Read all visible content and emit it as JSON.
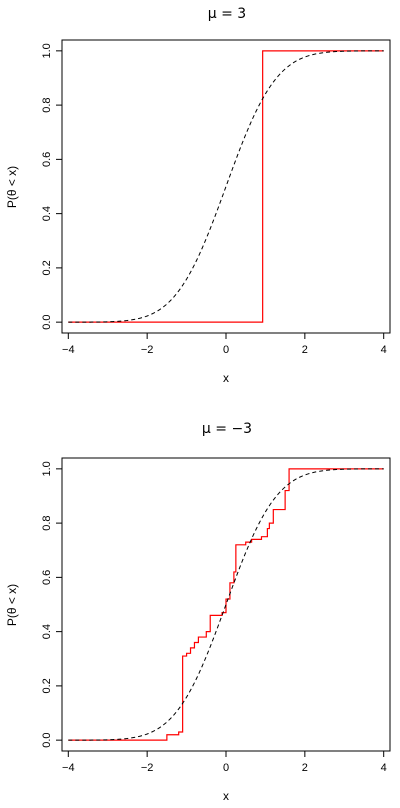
{
  "chart_data": [
    {
      "type": "line",
      "title": "μ = 3",
      "xlabel": "x",
      "ylabel": "P(θ < x)",
      "xlim": [
        -4.16,
        4.16
      ],
      "ylim": [
        -0.04,
        1.04
      ],
      "xticks": [
        -4,
        -2,
        0,
        2,
        4
      ],
      "yticks": [
        0.0,
        0.2,
        0.4,
        0.6,
        0.8,
        1.0
      ],
      "xtick_labels": [
        "−4",
        "−2",
        "0",
        "2",
        "4"
      ],
      "ytick_labels": [
        "0.0",
        "0.2",
        "0.4",
        "0.6",
        "0.8",
        "1.0"
      ],
      "grid": false,
      "series": [
        {
          "style": "step",
          "color": "#ff0000",
          "dash": "solid",
          "x": [
            -4,
            0.93,
            0.93,
            4
          ],
          "y": [
            0,
            0,
            1,
            1
          ]
        },
        {
          "style": "normal-cdf",
          "color": "#000000",
          "dash": "dashed",
          "mean": 0,
          "sd": 1,
          "x_range": [
            -4,
            4
          ]
        }
      ]
    },
    {
      "type": "line",
      "title": "μ = −3",
      "xlabel": "x",
      "ylabel": "P(θ < x)",
      "xlim": [
        -4.16,
        4.16
      ],
      "ylim": [
        -0.04,
        1.04
      ],
      "xticks": [
        -4,
        -2,
        0,
        2,
        4
      ],
      "yticks": [
        0.0,
        0.2,
        0.4,
        0.6,
        0.8,
        1.0
      ],
      "xtick_labels": [
        "−4",
        "−2",
        "0",
        "2",
        "4"
      ],
      "ytick_labels": [
        "0.0",
        "0.2",
        "0.4",
        "0.6",
        "0.8",
        "1.0"
      ],
      "grid": false,
      "series": [
        {
          "style": "step",
          "color": "#ff0000",
          "dash": "solid",
          "x": [
            -4,
            -1.5,
            -1.5,
            -1.2,
            -1.2,
            -1.1,
            -1.1,
            -1.0,
            -1.0,
            -0.9,
            -0.9,
            -0.8,
            -0.8,
            -0.7,
            -0.7,
            -0.5,
            -0.5,
            -0.4,
            -0.4,
            -0.1,
            -0.1,
            0.0,
            0.0,
            0.1,
            0.1,
            0.2,
            0.2,
            0.25,
            0.25,
            0.5,
            0.5,
            0.65,
            0.65,
            0.9,
            0.9,
            1.05,
            1.05,
            1.1,
            1.1,
            1.2,
            1.2,
            1.5,
            1.5,
            1.6,
            1.6,
            4
          ],
          "y": [
            0,
            0,
            0.02,
            0.02,
            0.03,
            0.03,
            0.31,
            0.31,
            0.32,
            0.32,
            0.34,
            0.34,
            0.36,
            0.36,
            0.38,
            0.38,
            0.4,
            0.4,
            0.46,
            0.46,
            0.47,
            0.47,
            0.52,
            0.52,
            0.58,
            0.58,
            0.62,
            0.62,
            0.72,
            0.72,
            0.73,
            0.73,
            0.74,
            0.74,
            0.75,
            0.75,
            0.78,
            0.78,
            0.8,
            0.8,
            0.85,
            0.85,
            0.92,
            0.92,
            1.0,
            1.0
          ]
        },
        {
          "style": "normal-cdf",
          "color": "#000000",
          "dash": "dashed",
          "mean": 0,
          "sd": 1,
          "x_range": [
            -4,
            4
          ]
        }
      ]
    }
  ]
}
